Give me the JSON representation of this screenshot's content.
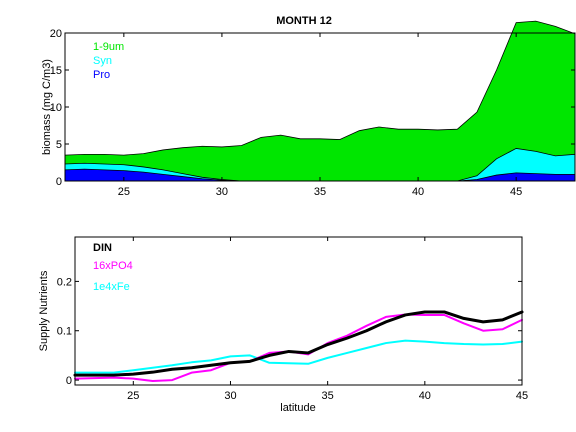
{
  "chart_data": [
    {
      "type": "area",
      "stacked": true,
      "title": "MONTH 12",
      "xlabel": "",
      "ylabel": "biomass (mg C/m3)",
      "xlim": [
        22,
        48
      ],
      "ylim": [
        0,
        20
      ],
      "xticks": [
        25,
        30,
        35,
        40,
        45
      ],
      "yticks": [
        0,
        5,
        10,
        15,
        20
      ],
      "legend": "top-left",
      "x": [
        22,
        23,
        24,
        25,
        26,
        27,
        28,
        29,
        30,
        31,
        32,
        33,
        34,
        35,
        36,
        37,
        38,
        39,
        40,
        41,
        42,
        43,
        44,
        45,
        46,
        47,
        48
      ],
      "series": [
        {
          "name": "Pro",
          "color": "#0000ff",
          "values": [
            1.5,
            1.6,
            1.5,
            1.4,
            1.2,
            0.9,
            0.6,
            0.3,
            0.1,
            0,
            0,
            0,
            0,
            0,
            0,
            0,
            0,
            0,
            0,
            0,
            0,
            0.2,
            0.8,
            1.1,
            1.0,
            0.9,
            0.9
          ]
        },
        {
          "name": "Syn",
          "color": "#00ffff",
          "values": [
            0.8,
            0.8,
            0.8,
            0.8,
            0.7,
            0.6,
            0.4,
            0.2,
            0.1,
            0,
            0,
            0,
            0,
            0,
            0,
            0,
            0,
            0,
            0,
            0,
            0,
            0.5,
            2.2,
            3.3,
            3.0,
            2.5,
            2.7
          ]
        },
        {
          "name": "1-9um",
          "color": "#00e600",
          "values": [
            1.2,
            1.2,
            1.3,
            1.3,
            1.8,
            2.7,
            3.5,
            4.2,
            4.4,
            4.8,
            5.9,
            6.2,
            5.7,
            5.7,
            5.6,
            6.8,
            7.3,
            7.0,
            7.0,
            6.9,
            7.0,
            8.6,
            12.0,
            17.0,
            17.6,
            17.5,
            16.3
          ]
        }
      ]
    },
    {
      "type": "line",
      "title": "",
      "xlabel": "latitude",
      "ylabel": "Supply Nutrients",
      "xlim": [
        22,
        45
      ],
      "ylim": [
        -0.01,
        0.29
      ],
      "xticks": [
        25,
        30,
        35,
        40,
        45
      ],
      "yticks": [
        0,
        0.1,
        0.2
      ],
      "legend": "top-left",
      "x": [
        22,
        23,
        24,
        25,
        26,
        27,
        28,
        29,
        30,
        31,
        32,
        33,
        34,
        35,
        36,
        37,
        38,
        39,
        40,
        41,
        42,
        43,
        44,
        45
      ],
      "series": [
        {
          "name": "DIN",
          "color": "#000000",
          "values": [
            0.01,
            0.01,
            0.01,
            0.012,
            0.016,
            0.022,
            0.025,
            0.03,
            0.035,
            0.038,
            0.05,
            0.058,
            0.055,
            0.072,
            0.085,
            0.1,
            0.118,
            0.132,
            0.138,
            0.138,
            0.125,
            0.118,
            0.122,
            0.138
          ]
        },
        {
          "name": "16xPO4",
          "color": "#ff00ff",
          "values": [
            0.003,
            0.004,
            0.005,
            0.003,
            -0.002,
            0.0,
            0.015,
            0.02,
            0.035,
            0.038,
            0.055,
            0.058,
            0.052,
            0.075,
            0.09,
            0.11,
            0.128,
            0.133,
            0.132,
            0.132,
            0.115,
            0.1,
            0.103,
            0.122
          ]
        },
        {
          "name": "1e4xFe",
          "color": "#00ffff",
          "values": [
            0.015,
            0.015,
            0.015,
            0.02,
            0.025,
            0.03,
            0.036,
            0.04,
            0.048,
            0.05,
            0.035,
            0.034,
            0.033,
            0.045,
            0.055,
            0.065,
            0.075,
            0.08,
            0.078,
            0.075,
            0.073,
            0.072,
            0.073,
            0.078
          ]
        }
      ]
    }
  ]
}
